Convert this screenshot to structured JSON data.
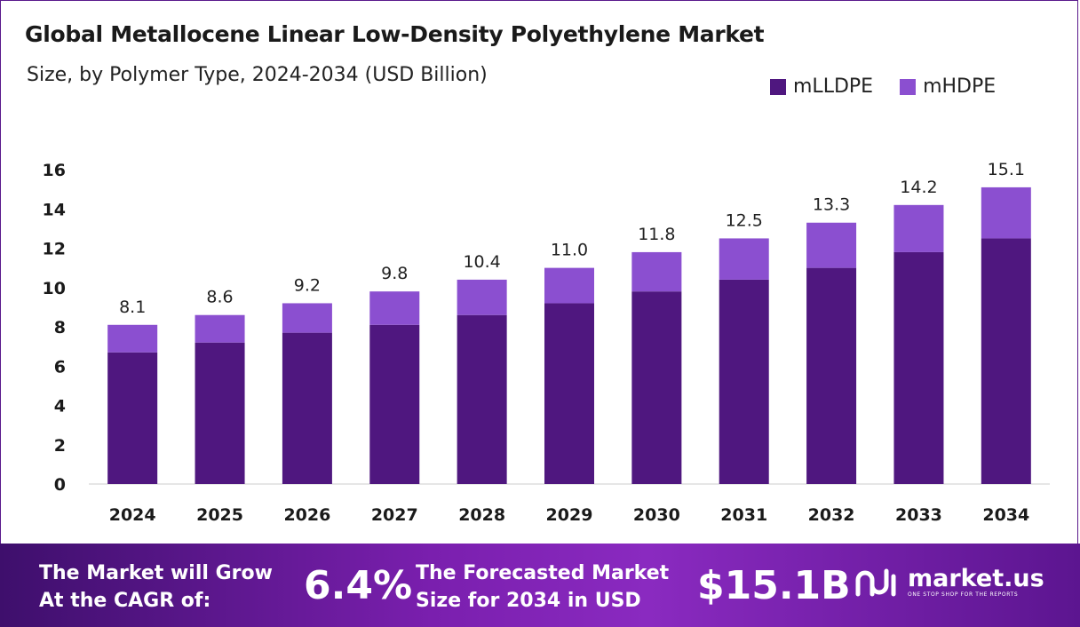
{
  "header": {
    "title": "Global Metallocene Linear Low-Density Polyethylene Market",
    "subtitle": "Size, by Polymer Type, 2024-2034 (USD Billion)"
  },
  "legend": [
    {
      "label": "mLLDPE",
      "color": "#4f177f"
    },
    {
      "label": "mHDPE",
      "color": "#8b4fd0"
    }
  ],
  "chart_data": {
    "type": "bar",
    "stacked": true,
    "categories": [
      "2024",
      "2025",
      "2026",
      "2027",
      "2028",
      "2029",
      "2030",
      "2031",
      "2032",
      "2033",
      "2034"
    ],
    "series": [
      {
        "name": "mLLDPE",
        "color": "#4f177f",
        "values": [
          6.7,
          7.2,
          7.7,
          8.1,
          8.6,
          9.2,
          9.8,
          10.4,
          11.0,
          11.8,
          12.5
        ]
      },
      {
        "name": "mHDPE",
        "color": "#8b4fd0",
        "values": [
          1.4,
          1.4,
          1.5,
          1.7,
          1.8,
          1.8,
          2.0,
          2.1,
          2.3,
          2.4,
          2.6
        ]
      }
    ],
    "totals": [
      "8.1",
      "8.6",
      "9.2",
      "9.8",
      "10.4",
      "11.0",
      "11.8",
      "12.5",
      "13.3",
      "14.2",
      "15.1"
    ],
    "ylim": [
      0,
      16
    ],
    "yticks": [
      0,
      2,
      4,
      6,
      8,
      10,
      12,
      14,
      16
    ],
    "grid": false,
    "legend_position": "top-right"
  },
  "banner": {
    "line1a": "The Market will Grow",
    "line1b": "At the CAGR of:",
    "cagr": "6.4%",
    "line2a": "The Forecasted Market",
    "line2b": "Size for 2034 in USD",
    "size": "$15.1B",
    "brand": "market.us",
    "tagline": "ONE STOP SHOP FOR THE REPORTS"
  }
}
